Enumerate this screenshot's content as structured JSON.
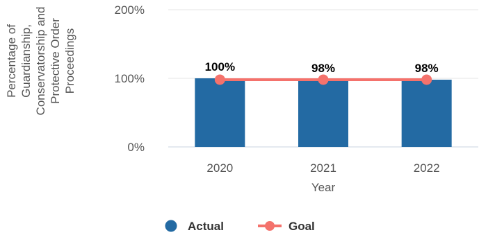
{
  "chart_data": {
    "type": "bar",
    "categories": [
      "2020",
      "2021",
      "2022"
    ],
    "series": [
      {
        "name": "Actual",
        "type": "bar",
        "color": "#236aa3",
        "values": [
          100,
          98,
          98
        ]
      },
      {
        "name": "Goal",
        "type": "line",
        "color": "#f4726c",
        "values": [
          98,
          98,
          98
        ]
      }
    ],
    "data_labels": [
      "100%",
      "98%",
      "98%"
    ],
    "xlabel": "Year",
    "ylabel_lines": [
      "Percentage of",
      "Guardianship,",
      "Conservatorship and",
      "Protective Order",
      "Proceedings"
    ],
    "ylim": [
      0,
      200
    ],
    "y_ticks": [
      {
        "value": 0,
        "label": "0%"
      },
      {
        "value": 100,
        "label": "100%"
      },
      {
        "value": 200,
        "label": "200%"
      }
    ],
    "grid": true,
    "legend_position": "bottom"
  }
}
